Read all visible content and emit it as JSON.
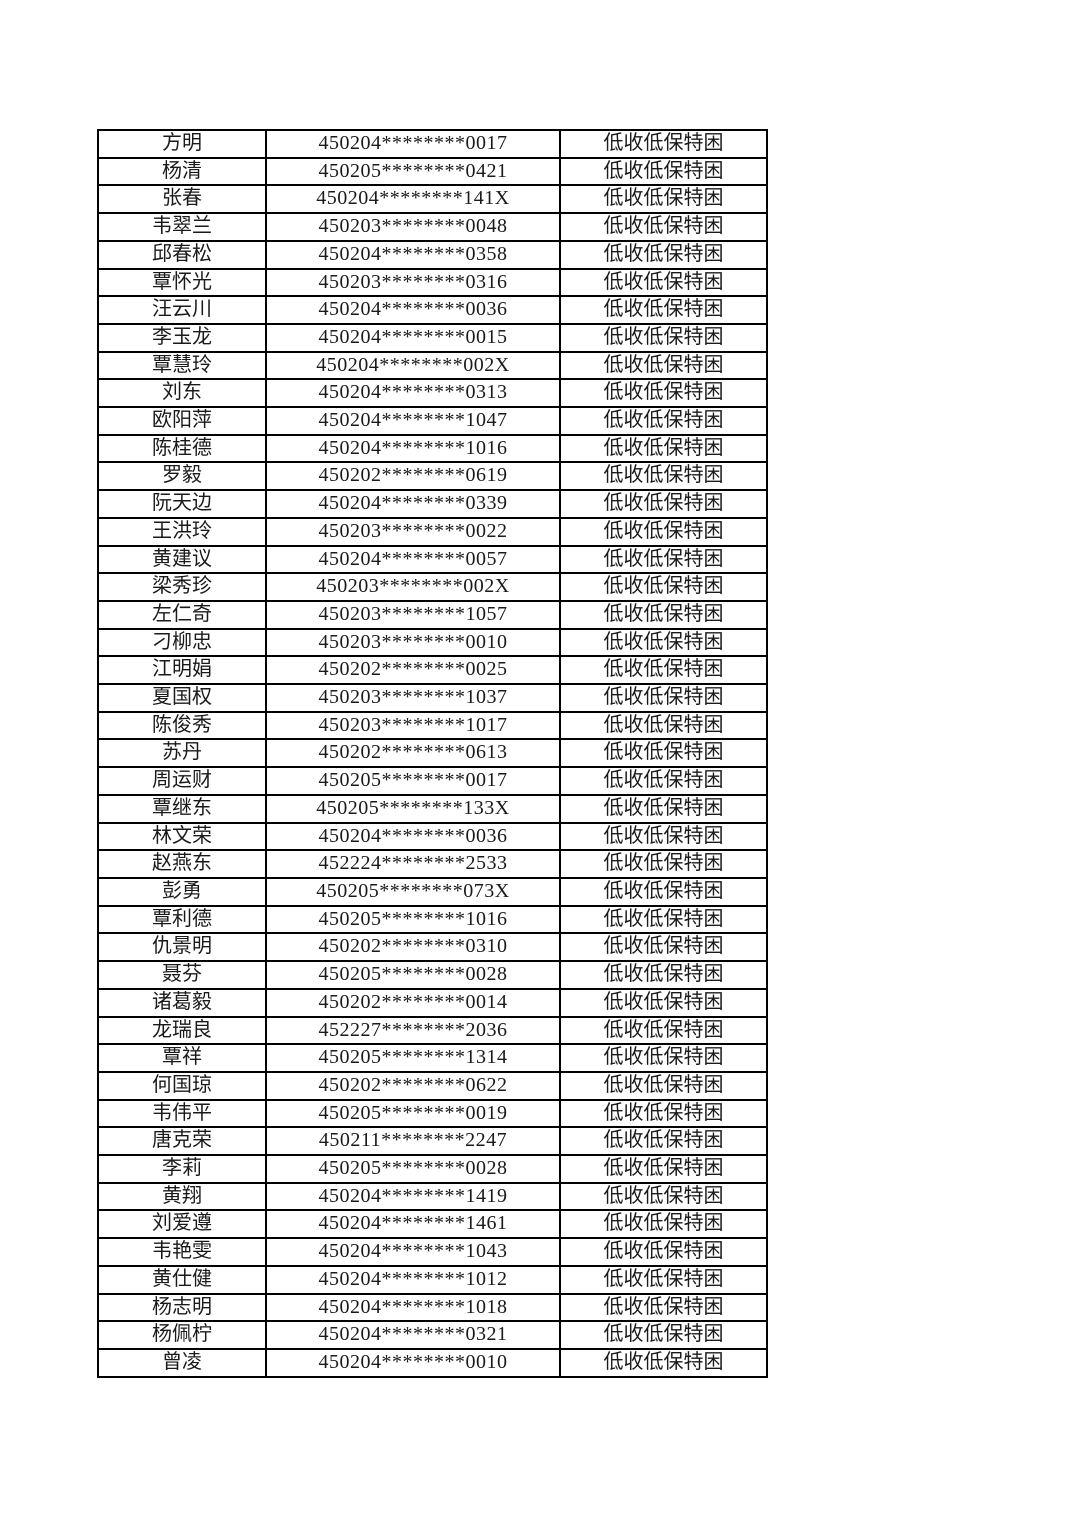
{
  "colors": {
    "background": "#ffffff",
    "border": "#000000",
    "text": "#1a1a1a"
  },
  "table": {
    "category_label": "低收低保特困",
    "rows": [
      {
        "name": "方明",
        "id_number": "450204********0017",
        "category": "低收低保特困"
      },
      {
        "name": "杨清",
        "id_number": "450205********0421",
        "category": "低收低保特困"
      },
      {
        "name": "张春",
        "id_number": "450204********141X",
        "category": "低收低保特困"
      },
      {
        "name": "韦翠兰",
        "id_number": "450203********0048",
        "category": "低收低保特困"
      },
      {
        "name": "邱春松",
        "id_number": "450204********0358",
        "category": "低收低保特困"
      },
      {
        "name": "覃怀光",
        "id_number": "450203********0316",
        "category": "低收低保特困"
      },
      {
        "name": "汪云川",
        "id_number": "450204********0036",
        "category": "低收低保特困"
      },
      {
        "name": "李玉龙",
        "id_number": "450204********0015",
        "category": "低收低保特困"
      },
      {
        "name": "覃慧玲",
        "id_number": "450204********002X",
        "category": "低收低保特困"
      },
      {
        "name": "刘东",
        "id_number": "450204********0313",
        "category": "低收低保特困"
      },
      {
        "name": "欧阳萍",
        "id_number": "450204********1047",
        "category": "低收低保特困"
      },
      {
        "name": "陈桂德",
        "id_number": "450204********1016",
        "category": "低收低保特困"
      },
      {
        "name": "罗毅",
        "id_number": "450202********0619",
        "category": "低收低保特困"
      },
      {
        "name": "阮天边",
        "id_number": "450204********0339",
        "category": "低收低保特困"
      },
      {
        "name": "王洪玲",
        "id_number": "450203********0022",
        "category": "低收低保特困"
      },
      {
        "name": "黄建议",
        "id_number": "450204********0057",
        "category": "低收低保特困"
      },
      {
        "name": "梁秀珍",
        "id_number": "450203********002X",
        "category": "低收低保特困"
      },
      {
        "name": "左仁奇",
        "id_number": "450203********1057",
        "category": "低收低保特困"
      },
      {
        "name": "刁柳忠",
        "id_number": "450203********0010",
        "category": "低收低保特困"
      },
      {
        "name": "江明娟",
        "id_number": "450202********0025",
        "category": "低收低保特困"
      },
      {
        "name": "夏国权",
        "id_number": "450203********1037",
        "category": "低收低保特困"
      },
      {
        "name": "陈俊秀",
        "id_number": "450203********1017",
        "category": "低收低保特困"
      },
      {
        "name": "苏丹",
        "id_number": "450202********0613",
        "category": "低收低保特困"
      },
      {
        "name": "周运财",
        "id_number": "450205********0017",
        "category": "低收低保特困"
      },
      {
        "name": "覃继东",
        "id_number": "450205********133X",
        "category": "低收低保特困"
      },
      {
        "name": "林文荣",
        "id_number": "450204********0036",
        "category": "低收低保特困"
      },
      {
        "name": "赵燕东",
        "id_number": "452224********2533",
        "category": "低收低保特困"
      },
      {
        "name": "彭勇",
        "id_number": "450205********073X",
        "category": "低收低保特困"
      },
      {
        "name": "覃利德",
        "id_number": "450205********1016",
        "category": "低收低保特困"
      },
      {
        "name": "仇景明",
        "id_number": "450202********0310",
        "category": "低收低保特困"
      },
      {
        "name": "聂芬",
        "id_number": "450205********0028",
        "category": "低收低保特困"
      },
      {
        "name": "诸葛毅",
        "id_number": "450202********0014",
        "category": "低收低保特困"
      },
      {
        "name": "龙瑞良",
        "id_number": "452227********2036",
        "category": "低收低保特困"
      },
      {
        "name": "覃祥",
        "id_number": "450205********1314",
        "category": "低收低保特困"
      },
      {
        "name": "何国琼",
        "id_number": "450202********0622",
        "category": "低收低保特困"
      },
      {
        "name": "韦伟平",
        "id_number": "450205********0019",
        "category": "低收低保特困"
      },
      {
        "name": "唐克荣",
        "id_number": "450211********2247",
        "category": "低收低保特困"
      },
      {
        "name": "李莉",
        "id_number": "450205********0028",
        "category": "低收低保特困"
      },
      {
        "name": "黄翔",
        "id_number": "450204********1419",
        "category": "低收低保特困"
      },
      {
        "name": "刘爱遵",
        "id_number": "450204********1461",
        "category": "低收低保特困"
      },
      {
        "name": "韦艳雯",
        "id_number": "450204********1043",
        "category": "低收低保特困"
      },
      {
        "name": "黄仕健",
        "id_number": "450204********1012",
        "category": "低收低保特困"
      },
      {
        "name": "杨志明",
        "id_number": "450204********1018",
        "category": "低收低保特困"
      },
      {
        "name": "杨佩柠",
        "id_number": "450204********0321",
        "category": "低收低保特困"
      },
      {
        "name": "曾凌",
        "id_number": "450204********0010",
        "category": "低收低保特困"
      }
    ]
  }
}
